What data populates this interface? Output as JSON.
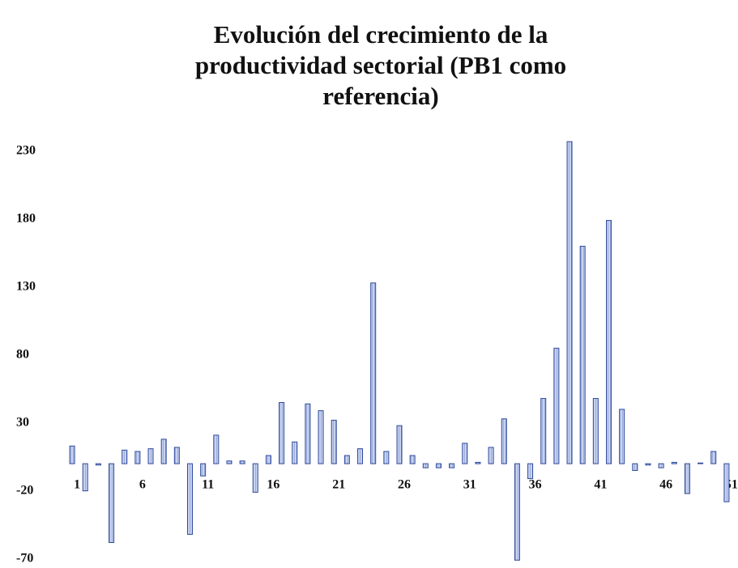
{
  "chart_data": {
    "type": "bar",
    "title": "Evolución del crecimiento de la productividad sectorial (PB1 como referencia)",
    "categories": [
      "1",
      null,
      null,
      null,
      null,
      "6",
      null,
      null,
      null,
      null,
      "11",
      null,
      null,
      null,
      null,
      "16",
      null,
      null,
      null,
      null,
      "21",
      null,
      null,
      null,
      null,
      "26",
      null,
      null,
      null,
      null,
      "31",
      null,
      null,
      null,
      null,
      "36",
      null,
      null,
      null,
      null,
      "41",
      null,
      null,
      null,
      null,
      "46",
      null,
      null,
      null,
      null,
      "51"
    ],
    "values": [
      13,
      -20,
      -1,
      -58,
      10,
      9,
      11,
      18,
      12,
      -52,
      -9,
      21,
      2,
      2,
      -21,
      6,
      45,
      16,
      44,
      39,
      32,
      6,
      11,
      133,
      9,
      28,
      6,
      -3,
      -3,
      -3,
      15,
      1,
      12,
      33,
      -71,
      -11,
      48,
      85,
      237,
      160,
      48,
      179,
      40,
      -5,
      -1,
      -3,
      1,
      -22,
      0.5,
      9,
      -28
    ],
    "color": "#aebde6",
    "ylim": [
      -72,
      240
    ],
    "yticks": [
      -70,
      -20,
      30,
      80,
      130,
      180,
      230
    ],
    "grid": false
  }
}
